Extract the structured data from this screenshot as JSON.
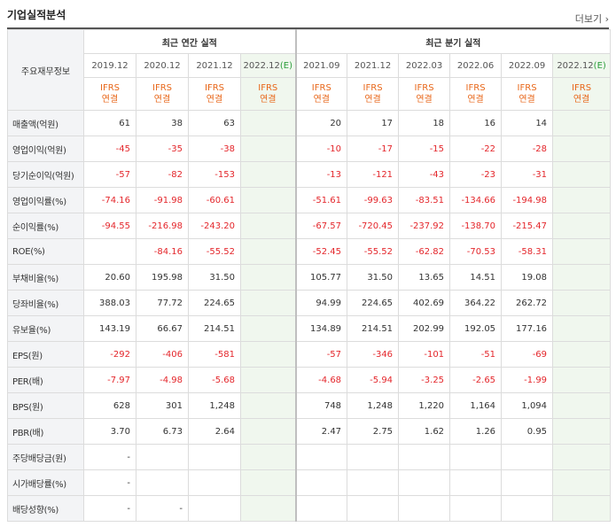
{
  "header": {
    "title": "기업실적분석",
    "more_label": "더보기",
    "more_arrow": "›"
  },
  "table": {
    "label_col_header": "주요재무정보",
    "groups": {
      "annual": "최근 연간 실적",
      "quarterly": "최근 분기 실적"
    },
    "annual_periods": [
      "2019.12",
      "2020.12",
      "2021.12",
      "2022.12"
    ],
    "quarterly_periods": [
      "2021.09",
      "2021.12",
      "2022.03",
      "2022.06",
      "2022.09",
      "2022.12"
    ],
    "estimate_tag": "(E)",
    "accounting_top": "IFRS",
    "accounting_bottom": "연결",
    "rows": [
      {
        "label": "매출액(억원)",
        "values": [
          "61",
          "38",
          "63",
          "",
          "20",
          "17",
          "18",
          "16",
          "14",
          ""
        ]
      },
      {
        "label": "영업이익(억원)",
        "values": [
          "-45",
          "-35",
          "-38",
          "",
          "-10",
          "-17",
          "-15",
          "-22",
          "-28",
          ""
        ]
      },
      {
        "label": "당기순이익(억원)",
        "values": [
          "-57",
          "-82",
          "-153",
          "",
          "-13",
          "-121",
          "-43",
          "-23",
          "-31",
          ""
        ]
      },
      {
        "label": "영업이익률(%)",
        "values": [
          "-74.16",
          "-91.98",
          "-60.61",
          "",
          "-51.61",
          "-99.63",
          "-83.51",
          "-134.66",
          "-194.98",
          ""
        ]
      },
      {
        "label": "순이익률(%)",
        "values": [
          "-94.55",
          "-216.98",
          "-243.20",
          "",
          "-67.57",
          "-720.45",
          "-237.92",
          "-138.70",
          "-215.47",
          ""
        ]
      },
      {
        "label": "ROE(%)",
        "values": [
          "",
          "-84.16",
          "-55.52",
          "",
          "-52.45",
          "-55.52",
          "-62.82",
          "-70.53",
          "-58.31",
          ""
        ]
      },
      {
        "label": "부채비율(%)",
        "values": [
          "20.60",
          "195.98",
          "31.50",
          "",
          "105.77",
          "31.50",
          "13.65",
          "14.51",
          "19.08",
          ""
        ]
      },
      {
        "label": "당좌비율(%)",
        "values": [
          "388.03",
          "77.72",
          "224.65",
          "",
          "94.99",
          "224.65",
          "402.69",
          "364.22",
          "262.72",
          ""
        ]
      },
      {
        "label": "유보율(%)",
        "values": [
          "143.19",
          "66.67",
          "214.51",
          "",
          "134.89",
          "214.51",
          "202.99",
          "192.05",
          "177.16",
          ""
        ]
      },
      {
        "label": "EPS(원)",
        "values": [
          "-292",
          "-406",
          "-581",
          "",
          "-57",
          "-346",
          "-101",
          "-51",
          "-69",
          ""
        ]
      },
      {
        "label": "PER(배)",
        "values": [
          "-7.97",
          "-4.98",
          "-5.68",
          "",
          "-4.68",
          "-5.94",
          "-3.25",
          "-2.65",
          "-1.99",
          ""
        ]
      },
      {
        "label": "BPS(원)",
        "values": [
          "628",
          "301",
          "1,248",
          "",
          "748",
          "1,248",
          "1,220",
          "1,164",
          "1,094",
          ""
        ]
      },
      {
        "label": "PBR(배)",
        "values": [
          "3.70",
          "6.73",
          "2.64",
          "",
          "2.47",
          "2.75",
          "1.62",
          "1.26",
          "0.95",
          ""
        ]
      },
      {
        "label": "주당배당금(원)",
        "values": [
          "-",
          "",
          "",
          "",
          "",
          "",
          "",
          "",
          "",
          ""
        ]
      },
      {
        "label": "시가배당률(%)",
        "values": [
          "-",
          "",
          "",
          "",
          "",
          "",
          "",
          "",
          "",
          ""
        ]
      },
      {
        "label": "배당성향(%)",
        "values": [
          "-",
          "-",
          "",
          "",
          "",
          "",
          "",
          "",
          "",
          ""
        ]
      }
    ]
  }
}
